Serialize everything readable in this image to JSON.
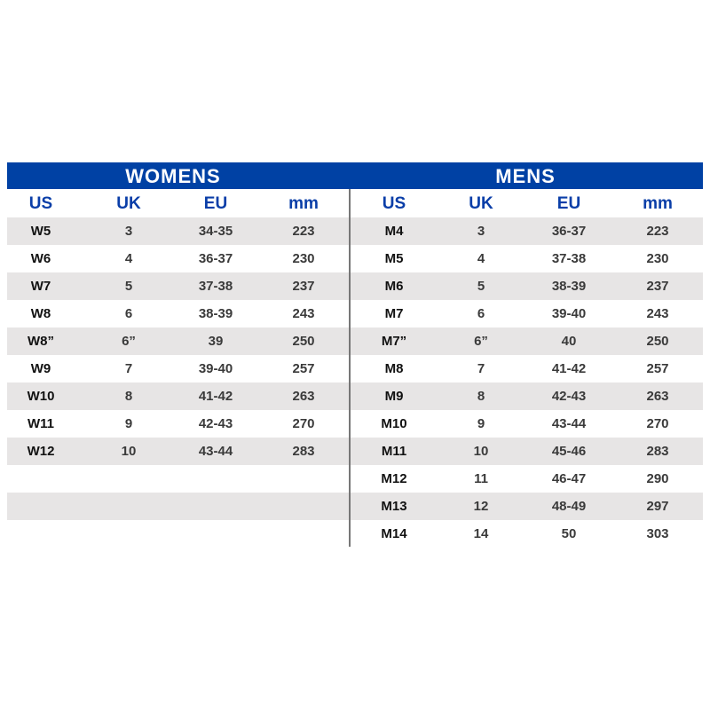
{
  "womens": {
    "title": "WOMENS",
    "headers": [
      "US",
      "UK",
      "EU",
      "mm"
    ],
    "rows": [
      [
        "W5",
        "3",
        "34-35",
        "223"
      ],
      [
        "W6",
        "4",
        "36-37",
        "230"
      ],
      [
        "W7",
        "5",
        "37-38",
        "237"
      ],
      [
        "W8",
        "6",
        "38-39",
        "243"
      ],
      [
        "W8”",
        "6”",
        "39",
        "250"
      ],
      [
        "W9",
        "7",
        "39-40",
        "257"
      ],
      [
        "W10",
        "8",
        "41-42",
        "263"
      ],
      [
        "W11",
        "9",
        "42-43",
        "270"
      ],
      [
        "W12",
        "10",
        "43-44",
        "283"
      ]
    ]
  },
  "mens": {
    "title": "MENS",
    "headers": [
      "US",
      "UK",
      "EU",
      "mm"
    ],
    "rows": [
      [
        "M4",
        "3",
        "36-37",
        "223"
      ],
      [
        "M5",
        "4",
        "37-38",
        "230"
      ],
      [
        "M6",
        "5",
        "38-39",
        "237"
      ],
      [
        "M7",
        "6",
        "39-40",
        "243"
      ],
      [
        "M7”",
        "6”",
        "40",
        "250"
      ],
      [
        "M8",
        "7",
        "41-42",
        "257"
      ],
      [
        "M9",
        "8",
        "42-43",
        "263"
      ],
      [
        "M10",
        "9",
        "43-44",
        "270"
      ],
      [
        "M11",
        "10",
        "45-46",
        "283"
      ],
      [
        "M12",
        "11",
        "46-47",
        "290"
      ],
      [
        "M13",
        "12",
        "48-49",
        "297"
      ],
      [
        "M14",
        "14",
        "50",
        "303"
      ]
    ]
  },
  "colors": {
    "header_bar": "#0041a4",
    "header_text": "#0a3ea8",
    "stripe": "#e7e5e5"
  }
}
